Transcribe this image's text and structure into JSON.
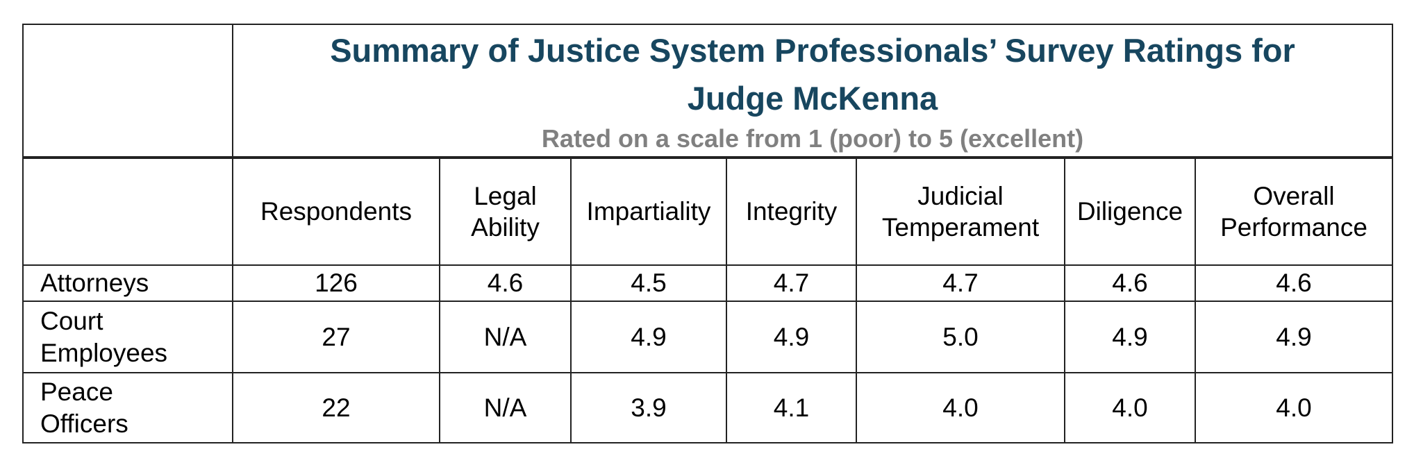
{
  "header": {
    "title": "Summary of Justice System Professionals’ Survey Ratings for Judge McKenna",
    "subtitle": "Rated on a scale from 1 (poor) to 5 (excellent)"
  },
  "table": {
    "columns": [
      "Respondents",
      "Legal Ability",
      "Impartiality",
      "Integrity",
      "Judicial Temperament",
      "Diligence",
      "Overall Performance"
    ],
    "rows": [
      {
        "label": "Attorneys",
        "cells": [
          "126",
          "4.6",
          "4.5",
          "4.7",
          "4.7",
          "4.6",
          "4.6"
        ]
      },
      {
        "label": "Court Employees",
        "cells": [
          "27",
          "N/A",
          "4.9",
          "4.9",
          "5.0",
          "4.9",
          "4.9"
        ]
      },
      {
        "label": "Peace Officers",
        "cells": [
          "22",
          "N/A",
          "3.9",
          "4.1",
          "4.0",
          "4.0",
          "4.0"
        ]
      }
    ]
  }
}
